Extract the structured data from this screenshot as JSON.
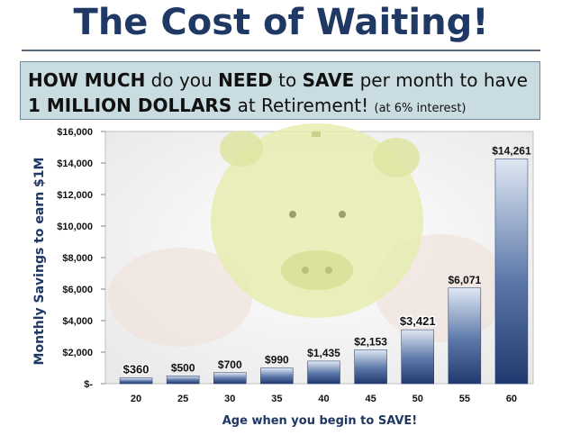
{
  "header": {
    "title": "The Cost of Waiting!"
  },
  "banner": {
    "line1": [
      {
        "text": "HOW MUCH",
        "bold": true
      },
      {
        "text": " do you ",
        "bold": false
      },
      {
        "text": "NEED",
        "bold": true
      },
      {
        "text": " to ",
        "bold": false
      },
      {
        "text": "SAVE",
        "bold": true
      },
      {
        "text": " per month to have",
        "bold": false
      }
    ],
    "line2": [
      {
        "text": "1 MILLION DOLLARS",
        "bold": true
      },
      {
        "text": " at Retirement! ",
        "bold": false
      }
    ],
    "note": "(at 6% interest)"
  },
  "chart_data": {
    "type": "bar",
    "xlabel": "Age when you begin to SAVE!",
    "ylabel": "Monthly Savings to earn $1M",
    "ylim": [
      0,
      16000
    ],
    "yticks": [
      {
        "value": 16000,
        "label": "$16,000"
      },
      {
        "value": 14000,
        "label": "$14,000"
      },
      {
        "value": 12000,
        "label": "$12,000"
      },
      {
        "value": 10000,
        "label": "$10,000"
      },
      {
        "value": 8000,
        "label": "$8,000"
      },
      {
        "value": 6000,
        "label": "$6,000"
      },
      {
        "value": 4000,
        "label": "$4,000"
      },
      {
        "value": 2000,
        "label": "$2,000"
      },
      {
        "value": 0,
        "label": "$-"
      }
    ],
    "categories": [
      "20",
      "25",
      "30",
      "35",
      "40",
      "45",
      "50",
      "55",
      "60"
    ],
    "values": [
      360,
      500,
      700,
      990,
      1435,
      2153,
      3421,
      6071,
      14261
    ],
    "data_labels": [
      "$360",
      "$500",
      "$700",
      "$990",
      "$1,435",
      "$2,153",
      "$3,421",
      "$6,071",
      "$14,261"
    ],
    "highlighted_labels": [
      "$360",
      "$3,421"
    ],
    "background_image": "piggy-bank-in-hands",
    "colors": {
      "bar_dark": "#1f3a6e",
      "bar_light": "#dfe7f3",
      "text": "#1f3864",
      "banner_bg": "#c9dce1",
      "piggy": "#e6ecb0"
    }
  }
}
